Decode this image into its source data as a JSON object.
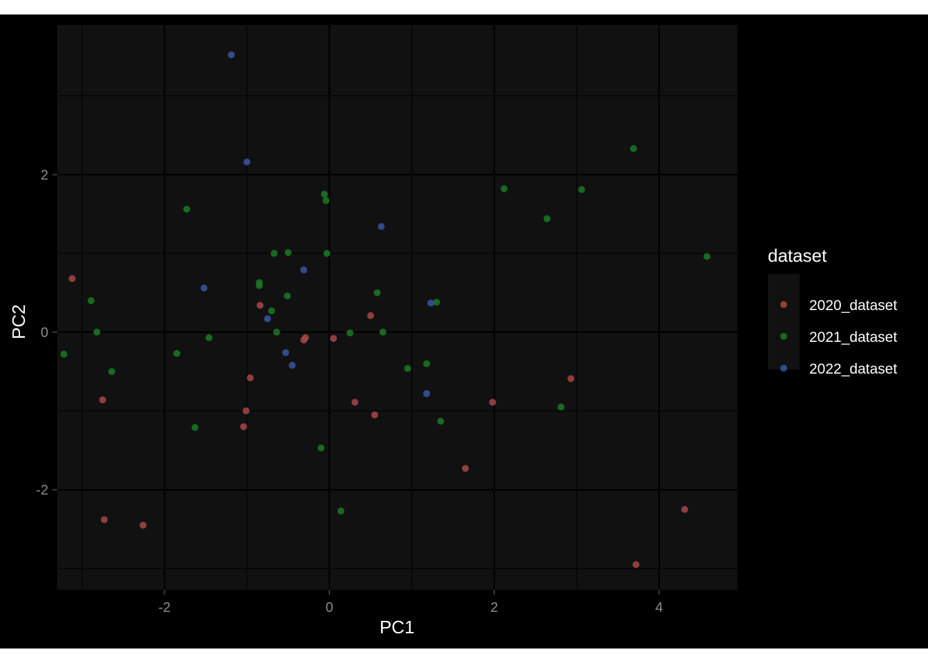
{
  "chart_data": {
    "type": "scatter",
    "title": "",
    "xlabel": "PC1",
    "ylabel": "PC2",
    "xlim": [
      -3.3,
      4.95
    ],
    "ylim": [
      -3.27,
      3.9
    ],
    "x_ticks": [
      -2,
      0,
      2,
      4
    ],
    "y_ticks": [
      -2,
      0,
      2
    ],
    "x_tick_labels": [
      "-2",
      "0",
      "2",
      "4"
    ],
    "y_tick_labels": [
      "-2",
      "0",
      "2"
    ],
    "grid": true,
    "legend_title": "dataset",
    "legend_position": "right",
    "panel_background": "#111111",
    "series": [
      {
        "name": "2020_dataset",
        "color": "#a84747",
        "points": [
          [
            -3.12,
            0.68
          ],
          [
            -2.75,
            -0.86
          ],
          [
            -2.73,
            -2.38
          ],
          [
            -2.26,
            -2.45
          ],
          [
            -0.84,
            0.34
          ],
          [
            -0.96,
            -0.58
          ],
          [
            -1.01,
            -1.0
          ],
          [
            -1.04,
            -1.2
          ],
          [
            -0.31,
            -0.1
          ],
          [
            -0.29,
            -0.07
          ],
          [
            0.05,
            -0.08
          ],
          [
            0.31,
            -0.89
          ],
          [
            0.5,
            0.21
          ],
          [
            0.55,
            -1.05
          ],
          [
            1.65,
            -1.73
          ],
          [
            1.98,
            -0.89
          ],
          [
            2.93,
            -0.59
          ],
          [
            3.72,
            -2.95
          ],
          [
            4.31,
            -2.25
          ]
        ]
      },
      {
        "name": "2021_dataset",
        "color": "#1a7a23",
        "points": [
          [
            -3.22,
            -0.28
          ],
          [
            -2.89,
            0.4
          ],
          [
            -2.82,
            0.0
          ],
          [
            -2.64,
            -0.5
          ],
          [
            -1.85,
            -0.27
          ],
          [
            -1.73,
            1.56
          ],
          [
            -1.63,
            -1.21
          ],
          [
            -1.46,
            -0.07
          ],
          [
            -0.85,
            0.63
          ],
          [
            -0.85,
            0.59
          ],
          [
            -0.7,
            0.27
          ],
          [
            -0.67,
            1.0
          ],
          [
            -0.64,
            0.0
          ],
          [
            -0.51,
            0.46
          ],
          [
            -0.5,
            1.01
          ],
          [
            -0.06,
            1.75
          ],
          [
            -0.04,
            1.67
          ],
          [
            -0.03,
            1.0
          ],
          [
            -0.1,
            -1.47
          ],
          [
            0.14,
            -2.27
          ],
          [
            0.25,
            -0.01
          ],
          [
            0.58,
            0.5
          ],
          [
            0.65,
            0.0
          ],
          [
            0.95,
            -0.46
          ],
          [
            1.18,
            -0.4
          ],
          [
            1.3,
            0.38
          ],
          [
            1.35,
            -1.13
          ],
          [
            2.12,
            1.82
          ],
          [
            2.64,
            1.44
          ],
          [
            2.81,
            -0.95
          ],
          [
            3.06,
            1.81
          ],
          [
            3.69,
            2.33
          ],
          [
            4.58,
            0.96
          ]
        ]
      },
      {
        "name": "2022_dataset",
        "color": "#3856a3",
        "points": [
          [
            -1.19,
            3.52
          ],
          [
            -1.0,
            2.16
          ],
          [
            -1.52,
            0.56
          ],
          [
            -0.31,
            0.79
          ],
          [
            -0.75,
            0.17
          ],
          [
            -0.53,
            -0.26
          ],
          [
            -0.45,
            -0.42
          ],
          [
            0.63,
            1.34
          ],
          [
            1.18,
            -0.78
          ],
          [
            1.23,
            0.37
          ]
        ]
      }
    ]
  }
}
